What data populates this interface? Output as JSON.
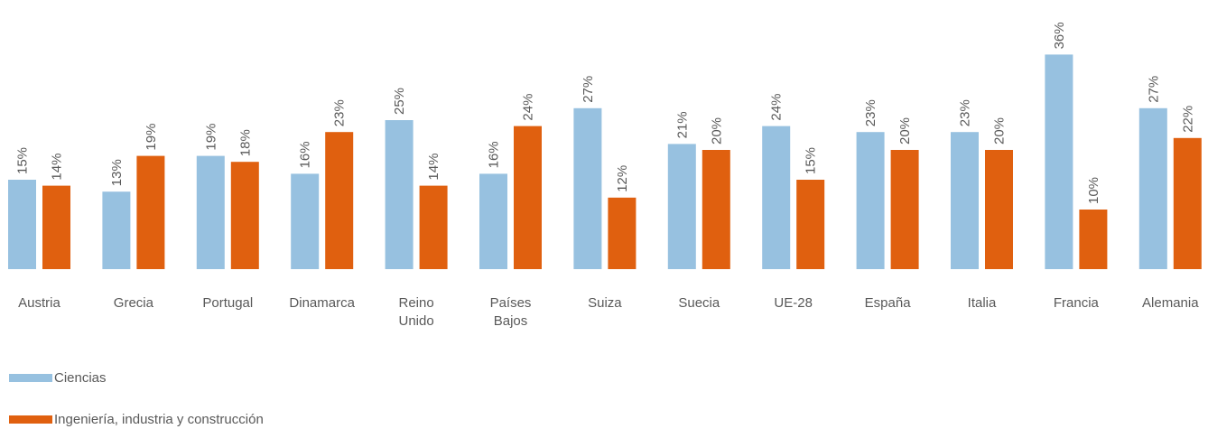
{
  "chart_data": {
    "type": "bar",
    "categories": [
      "Austria",
      "Grecia",
      "Portugal",
      "Dinamarca",
      "Reino Unido",
      "Países Bajos",
      "Suiza",
      "Suecia",
      "UE-28",
      "España",
      "Italia",
      "Francia",
      "Alemania"
    ],
    "series": [
      {
        "name": "Ciencias",
        "color": "#97c1e0",
        "values": [
          15,
          13,
          19,
          16,
          25,
          16,
          27,
          21,
          24,
          23,
          23,
          36,
          27
        ],
        "value_labels": [
          "15%",
          "13%",
          "19%",
          "16%",
          "25%",
          "16%",
          "27%",
          "21%",
          "24%",
          "23%",
          "23%",
          "36%",
          "27%"
        ]
      },
      {
        "name": "Ingeniería, industria y construcción",
        "color": "#e0600f",
        "values": [
          14,
          19,
          18,
          23,
          14,
          24,
          12,
          20,
          15,
          20,
          20,
          10,
          22
        ],
        "value_labels": [
          "14%",
          "19%",
          "18%",
          "23%",
          "14%",
          "24%",
          "12%",
          "20%",
          "15%",
          "20%",
          "20%",
          "10%",
          "22%"
        ]
      }
    ],
    "legend": "bottom-left"
  }
}
